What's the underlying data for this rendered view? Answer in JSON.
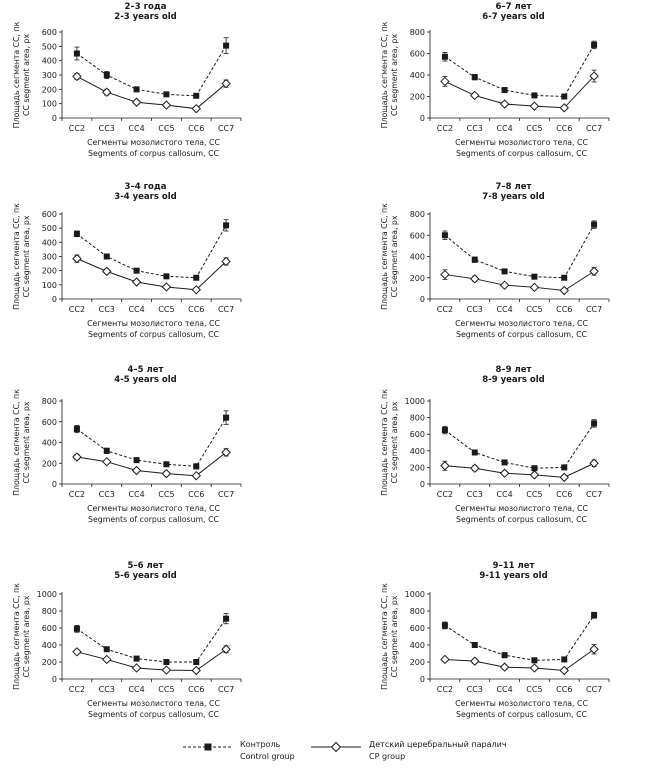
{
  "legend": {
    "control_ru": "Контроль",
    "control_en": "Control group",
    "cp_ru": "Детский церебральный паралич",
    "cp_en": "CP group"
  },
  "chart_data": [
    {
      "type": "line",
      "title": "2–3 года",
      "subtitle": "2-3 years old",
      "xlabel": "Сегменты мозолистого тела, СС",
      "xlabel2": "Segments of corpus callosum, CC",
      "ylabel": "Площадь сегмента СС, пк",
      "ylabel2": "CC segment area, px",
      "categories": [
        "CC2",
        "CC3",
        "CC4",
        "CC5",
        "CC6",
        "CC7"
      ],
      "ylim": [
        0,
        600
      ],
      "yticks": [
        0,
        100,
        200,
        300,
        400,
        500,
        600
      ],
      "series": [
        {
          "name": "Контроль / Control group",
          "style": "dashed",
          "marker": "square",
          "values": [
            450,
            300,
            200,
            165,
            155,
            505
          ],
          "errors": [
            45,
            25,
            12,
            10,
            10,
            55
          ]
        },
        {
          "name": "Детский церебральный паралич / CP group",
          "style": "solid",
          "marker": "diamond",
          "values": [
            290,
            180,
            110,
            90,
            65,
            240
          ],
          "errors": [
            20,
            20,
            8,
            8,
            6,
            25
          ]
        }
      ]
    },
    {
      "type": "line",
      "title": "6–7 лет",
      "subtitle": "6-7 years old",
      "xlabel": "Сегменты мозолистого тела, СС",
      "xlabel2": "Segments of corpus callosum, CC",
      "ylabel": "Площадь сегмента СС, пк",
      "ylabel2": "CC segment area, px",
      "categories": [
        "CC2",
        "CC3",
        "CC4",
        "CC5",
        "CC6",
        "CC7"
      ],
      "ylim": [
        0,
        800
      ],
      "yticks": [
        0,
        200,
        400,
        600,
        800
      ],
      "series": [
        {
          "name": "Контроль / Control group",
          "style": "dashed",
          "marker": "square",
          "values": [
            570,
            380,
            260,
            210,
            200,
            680
          ],
          "errors": [
            40,
            25,
            15,
            15,
            20,
            35
          ]
        },
        {
          "name": "Детский церебральный паралич / CP group",
          "style": "solid",
          "marker": "diamond",
          "values": [
            340,
            210,
            130,
            110,
            95,
            390
          ],
          "errors": [
            45,
            20,
            10,
            10,
            15,
            55
          ]
        }
      ]
    },
    {
      "type": "line",
      "title": "3–4 года",
      "subtitle": "3-4 years old",
      "xlabel": "Сегменты мозолистого тела, СС",
      "xlabel2": "Segments of corpus callosum, CC",
      "ylabel": "Площадь сегмента СС, пк",
      "ylabel2": "CC segment area, px",
      "categories": [
        "CC2",
        "CC3",
        "CC4",
        "CC5",
        "CC6",
        "CC7"
      ],
      "ylim": [
        0,
        600
      ],
      "yticks": [
        0,
        100,
        200,
        300,
        400,
        500,
        600
      ],
      "series": [
        {
          "name": "Контроль / Control group",
          "style": "dashed",
          "marker": "square",
          "values": [
            460,
            300,
            200,
            160,
            150,
            520
          ],
          "errors": [
            20,
            10,
            8,
            8,
            8,
            40
          ]
        },
        {
          "name": "Детский церебральный паралич / CP group",
          "style": "solid",
          "marker": "diamond",
          "values": [
            285,
            195,
            120,
            85,
            65,
            265
          ],
          "errors": [
            25,
            15,
            8,
            6,
            6,
            25
          ]
        }
      ]
    },
    {
      "type": "line",
      "title": "7–8 лет",
      "subtitle": "7-8 years old",
      "xlabel": "Сегменты мозолистого тела, СС",
      "xlabel2": "Segments of corpus callosum, CC",
      "ylabel": "Площадь сегмента СС, пк",
      "ylabel2": "CC segment area, px",
      "categories": [
        "CC2",
        "CC3",
        "CC4",
        "CC5",
        "CC6",
        "CC7"
      ],
      "ylim": [
        0,
        800
      ],
      "yticks": [
        0,
        200,
        400,
        600,
        800
      ],
      "series": [
        {
          "name": "Контроль / Control group",
          "style": "dashed",
          "marker": "square",
          "values": [
            600,
            370,
            260,
            210,
            200,
            700
          ],
          "errors": [
            40,
            25,
            12,
            10,
            10,
            35
          ]
        },
        {
          "name": "Детский церебральный паралич / CP group",
          "style": "solid",
          "marker": "diamond",
          "values": [
            230,
            190,
            130,
            110,
            80,
            260
          ],
          "errors": [
            45,
            25,
            10,
            10,
            10,
            35
          ]
        }
      ]
    },
    {
      "type": "line",
      "title": "4–5 лет",
      "subtitle": "4-5 years old",
      "xlabel": "Сегменты мозолистого тела, СС",
      "xlabel2": "Segments of corpus callosum, CC",
      "ylabel": "Площадь сегмента СС, пк",
      "ylabel2": "CC segment area, px",
      "categories": [
        "CC2",
        "CC3",
        "CC4",
        "CC5",
        "CC6",
        "CC7"
      ],
      "ylim": [
        0,
        800
      ],
      "yticks": [
        0,
        200,
        400,
        600,
        800
      ],
      "series": [
        {
          "name": "Контроль / Control group",
          "style": "dashed",
          "marker": "square",
          "values": [
            530,
            320,
            230,
            190,
            170,
            640
          ],
          "errors": [
            35,
            25,
            15,
            15,
            25,
            65
          ]
        },
        {
          "name": "Детский церебральный паралич / CP group",
          "style": "solid",
          "marker": "diamond",
          "values": [
            260,
            215,
            130,
            100,
            80,
            305
          ],
          "errors": [
            25,
            15,
            10,
            8,
            8,
            35
          ]
        }
      ]
    },
    {
      "type": "line",
      "title": "8–9 лет",
      "subtitle": "8-9 years old",
      "xlabel": "Сегменты мозолистого тела, СС",
      "xlabel2": "Segments of corpus callosum, CC",
      "ylabel": "Площадь сегмента СС, пк",
      "ylabel2": "CC segment area, px",
      "categories": [
        "CC2",
        "CC3",
        "CC4",
        "CC5",
        "CC6",
        "CC7"
      ],
      "ylim": [
        0,
        1000
      ],
      "yticks": [
        0,
        200,
        400,
        600,
        800,
        1000
      ],
      "series": [
        {
          "name": "Контроль / Control group",
          "style": "dashed",
          "marker": "square",
          "values": [
            650,
            380,
            260,
            190,
            200,
            730
          ],
          "errors": [
            45,
            25,
            15,
            12,
            20,
            45
          ]
        },
        {
          "name": "Детский церебральный паралич / CP group",
          "style": "solid",
          "marker": "diamond",
          "values": [
            220,
            190,
            130,
            110,
            80,
            250
          ],
          "errors": [
            55,
            30,
            10,
            10,
            15,
            40
          ]
        }
      ]
    },
    {
      "type": "line",
      "title": "5–6 лет",
      "subtitle": "5-6 years old",
      "xlabel": "Сегменты мозолистого тела, СС",
      "xlabel2": "Segments of corpus callosum, CC",
      "ylabel": "Площадь сегмента СС, пк",
      "ylabel2": "CC segment area, px",
      "categories": [
        "CC2",
        "CC3",
        "CC4",
        "CC5",
        "CC6",
        "CC7"
      ],
      "ylim": [
        0,
        1000
      ],
      "yticks": [
        0,
        200,
        400,
        600,
        800,
        1000
      ],
      "series": [
        {
          "name": "Контроль / Control group",
          "style": "dashed",
          "marker": "square",
          "values": [
            590,
            350,
            240,
            200,
            200,
            710
          ],
          "errors": [
            40,
            25,
            15,
            15,
            20,
            60
          ]
        },
        {
          "name": "Детский церебральный паралич / CP group",
          "style": "solid",
          "marker": "diamond",
          "values": [
            320,
            230,
            130,
            105,
            100,
            350
          ],
          "errors": [
            25,
            20,
            10,
            10,
            10,
            40
          ]
        }
      ]
    },
    {
      "type": "line",
      "title": "9–11 лет",
      "subtitle": "9-11 years old",
      "xlabel": "Сегменты мозолистого тела, СС",
      "xlabel2": "Segments of corpus callosum, CC",
      "ylabel": "Площадь сегмента СС, пк",
      "ylabel2": "CC segment area, px",
      "categories": [
        "CC2",
        "CC3",
        "CC4",
        "CC5",
        "CC6",
        "CC7"
      ],
      "ylim": [
        0,
        1000
      ],
      "yticks": [
        0,
        200,
        400,
        600,
        800,
        1000
      ],
      "series": [
        {
          "name": "Контроль / Control group",
          "style": "dashed",
          "marker": "square",
          "values": [
            630,
            400,
            280,
            220,
            230,
            750
          ],
          "errors": [
            40,
            20,
            20,
            15,
            15,
            35
          ]
        },
        {
          "name": "Детский церебральный паралич / CP group",
          "style": "solid",
          "marker": "diamond",
          "values": [
            230,
            210,
            140,
            130,
            100,
            350
          ],
          "errors": [
            25,
            25,
            25,
            15,
            15,
            55
          ]
        }
      ]
    }
  ]
}
